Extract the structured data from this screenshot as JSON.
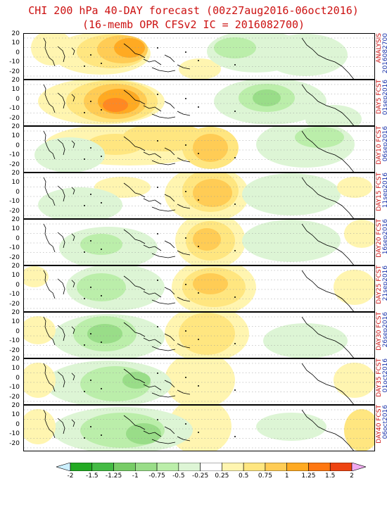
{
  "title": {
    "line1": "CHI 200 hPa 40-DAY forecast (00z27aug2016-06oct2016)",
    "line2": "(16-memb OPR CFSv2 IC = 2016082700)"
  },
  "y_ticks": [
    "20",
    "10",
    "0",
    "-10",
    "-20"
  ],
  "panels": [
    {
      "lead": "ANALYSIS",
      "date": "2016082700"
    },
    {
      "lead": "DAY5 FCST",
      "date": "01sep2016"
    },
    {
      "lead": "DAY10 FCST",
      "date": "06sep2016"
    },
    {
      "lead": "DAY15 FCST",
      "date": "11sep2016"
    },
    {
      "lead": "DAY20 FCST",
      "date": "16sep2016"
    },
    {
      "lead": "DAY25 FCST",
      "date": "21sep2016"
    },
    {
      "lead": "DAY30 FCST",
      "date": "26sep2016"
    },
    {
      "lead": "DAY35 FCST",
      "date": "01oct2016"
    },
    {
      "lead": "DAY40 FCST",
      "date": "06oct2016"
    }
  ],
  "colorbar": {
    "labels": [
      "-2",
      "-1.5",
      "-1.25",
      "-1",
      "-0.75",
      "-0.5",
      "-0.25",
      "0.25",
      "0.5",
      "0.75",
      "1",
      "1.25",
      "1.5",
      "2"
    ],
    "colors": [
      "#22aa22",
      "#44bb44",
      "#77cc66",
      "#99dd88",
      "#bbeeaa",
      "#ddf5d5",
      "#ffffff",
      "#fff5b0",
      "#ffe680",
      "#ffcc55",
      "#ffaa22",
      "#ff7711",
      "#ee4411"
    ],
    "under_color": "#ccf0ff",
    "over_color": "#f0aaf0"
  },
  "palette": {
    "neg1": "#ddf5d5",
    "neg2": "#bbeeaa",
    "neg3": "#99dd88",
    "neg4": "#77cc66",
    "pos1": "#fff5b0",
    "pos2": "#ffe680",
    "pos3": "#ffcc55",
    "pos4": "#ffaa22",
    "pos5": "#ff8822"
  }
}
